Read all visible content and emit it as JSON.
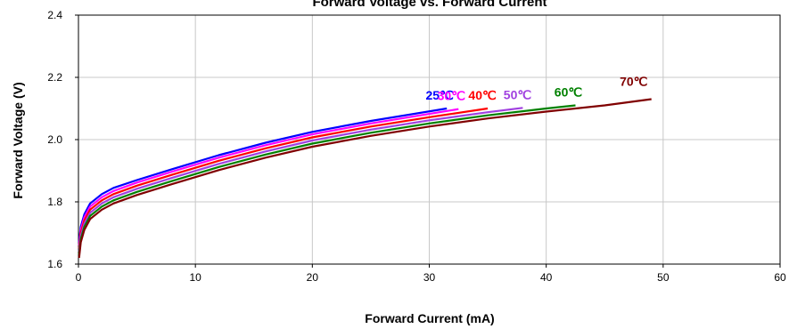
{
  "chart_data": {
    "type": "line",
    "title": "Forward Voltage vs. Forward Current",
    "xlabel": "Forward Current (mA)",
    "ylabel": "Forward Voltage (V)",
    "xlim": [
      0,
      60
    ],
    "ylim": [
      1.6,
      2.4
    ],
    "xticks": [
      "0",
      "10",
      "20",
      "30",
      "40",
      "50",
      "60"
    ],
    "yticks": [
      "1.6",
      "1.8",
      "2.0",
      "2.2",
      "2.4"
    ],
    "grid": true,
    "series": [
      {
        "name": "25℃",
        "color": "#0000ff",
        "x": [
          0.05,
          0.2,
          0.5,
          1,
          2,
          3,
          5,
          8,
          12,
          16,
          20,
          25,
          31.5
        ],
        "y": [
          1.67,
          1.72,
          1.76,
          1.795,
          1.825,
          1.845,
          1.87,
          1.905,
          1.95,
          1.99,
          2.025,
          2.06,
          2.1
        ]
      },
      {
        "name": "30℃",
        "color": "#ff00ff",
        "x": [
          0.05,
          0.2,
          0.5,
          1,
          2,
          3,
          5,
          8,
          12,
          16,
          20,
          25,
          32.5
        ],
        "y": [
          1.66,
          1.71,
          1.75,
          1.785,
          1.815,
          1.835,
          1.862,
          1.897,
          1.942,
          1.982,
          2.017,
          2.052,
          2.098
        ]
      },
      {
        "name": "40℃",
        "color": "#ff0000",
        "x": [
          0.05,
          0.2,
          0.5,
          1,
          2,
          3,
          5,
          8,
          12,
          16,
          20,
          25,
          30,
          35
        ],
        "y": [
          1.65,
          1.7,
          1.74,
          1.775,
          1.805,
          1.825,
          1.852,
          1.887,
          1.932,
          1.972,
          2.007,
          2.042,
          2.072,
          2.1
        ]
      },
      {
        "name": "50℃",
        "color": "#a040e0",
        "x": [
          0.05,
          0.2,
          0.5,
          1,
          2,
          3,
          5,
          8,
          12,
          16,
          20,
          25,
          30,
          35,
          38
        ],
        "y": [
          1.64,
          1.69,
          1.73,
          1.765,
          1.795,
          1.815,
          1.842,
          1.877,
          1.922,
          1.962,
          1.997,
          2.032,
          2.062,
          2.088,
          2.102
        ]
      },
      {
        "name": "60℃",
        "color": "#008000",
        "x": [
          0.05,
          0.2,
          0.5,
          1,
          2,
          3,
          5,
          8,
          12,
          16,
          20,
          25,
          30,
          35,
          40,
          42.5
        ],
        "y": [
          1.63,
          1.68,
          1.72,
          1.755,
          1.785,
          1.805,
          1.832,
          1.867,
          1.912,
          1.952,
          1.987,
          2.022,
          2.052,
          2.078,
          2.1,
          2.11
        ]
      },
      {
        "name": "70℃",
        "color": "#800000",
        "x": [
          0.05,
          0.2,
          0.5,
          1,
          2,
          3,
          5,
          8,
          12,
          16,
          20,
          25,
          30,
          35,
          40,
          45,
          49
        ],
        "y": [
          1.62,
          1.67,
          1.71,
          1.745,
          1.775,
          1.795,
          1.822,
          1.857,
          1.902,
          1.942,
          1.977,
          2.012,
          2.042,
          2.068,
          2.09,
          2.11,
          2.13
        ]
      }
    ]
  }
}
